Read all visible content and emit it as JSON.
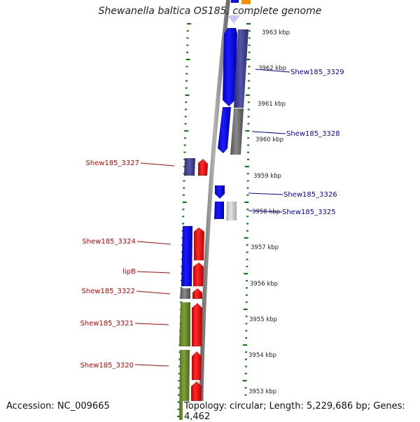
{
  "title": "Shewanella baltica OS185, complete genome",
  "accession": "Accession: NC_009665",
  "topology": "Topology: circular; Length: 5,229,686 bp; Genes: 4,462",
  "scale_labels": [
    "3963 kbp",
    "3962 kbp",
    "3961 kbp",
    "3960 kbp",
    "3959 kbp",
    "3958 kbp",
    "3957 kbp",
    "3956 kbp",
    "3955 kbp",
    "3954 kbp",
    "3953 kbp"
  ],
  "gene_labels_right": [
    "Shew185_3329",
    "Shew185_3328",
    "Shew185_3326",
    "Shew185_3325"
  ],
  "gene_labels_left": [
    "Shew185_3327",
    "Shew185_3324",
    "lipB",
    "Shew185_3322",
    "Shew185_3321",
    "Shew185_3320"
  ],
  "colors": {
    "forward_label": "#0000cc",
    "reverse_label": "#cc0000",
    "blue": "#0000ee",
    "slate": "#3b3b8a",
    "red": "#ee0000",
    "olive": "#6b8e23",
    "gray": "#6e6e6e",
    "lightgray": "#c8c8c8",
    "orange": "#ff8c00",
    "tick": "#008000",
    "backbone": "#8c8c8c"
  }
}
